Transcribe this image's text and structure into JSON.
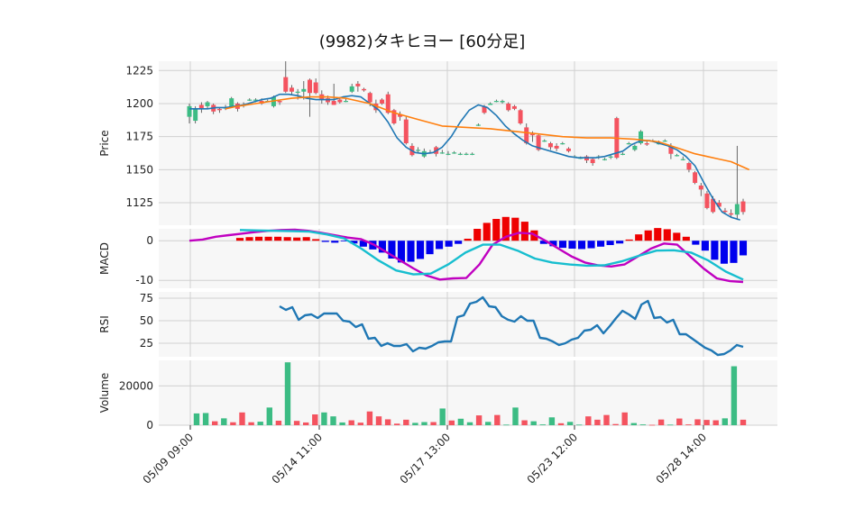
{
  "chart_data": {
    "type": "candlestick",
    "title": "(9982)タキヒヨー [60分足]",
    "x_tick_labels": [
      "05/09 09:00",
      "05/14 11:00",
      "05/17 13:00",
      "05/23 12:00",
      "05/28 14:00"
    ],
    "grid": true,
    "colors": {
      "up": "#3cbc84",
      "down": "#f4535f",
      "ma_short": "#1f77b4",
      "ma_long": "#ff7f0e",
      "macd_line": "#c000c0",
      "signal_line": "#17becf",
      "hist_pos": "#ee0000",
      "hist_neg": "#0000ee",
      "rsi": "#1f77b4",
      "panel_bg": "#f7f7f7"
    },
    "panels": {
      "price": {
        "ylabel": "Price",
        "yticks": [
          1125,
          1150,
          1175,
          1200,
          1225
        ],
        "ylim": [
          1108,
          1232
        ],
        "candles": [
          [
            1190,
            1198,
            1200,
            1185
          ],
          [
            1187,
            1196,
            1198,
            1185
          ],
          [
            1199,
            1196,
            1201,
            1193
          ],
          [
            1198,
            1201,
            1202,
            1196
          ],
          [
            1199,
            1194,
            1200,
            1192
          ],
          [
            1196,
            1195,
            1197,
            1193
          ],
          [
            1197,
            1197,
            1199,
            1195
          ],
          [
            1198,
            1204,
            1205,
            1197
          ],
          [
            1200,
            1196,
            1201,
            1194
          ],
          [
            1199,
            1199,
            1201,
            1197
          ],
          [
            1203,
            1203,
            1204,
            1202
          ],
          [
            1203,
            1203,
            1204,
            1201
          ],
          [
            1202,
            1200,
            1204,
            1199
          ],
          [
            1202,
            1202,
            1203,
            1201
          ],
          [
            1198,
            1205,
            1206,
            1197
          ],
          [
            1202,
            1201,
            1203,
            1199
          ],
          [
            1220,
            1209,
            1232,
            1208
          ],
          [
            1212,
            1209,
            1214,
            1207
          ],
          [
            1209,
            1209,
            1211,
            1203
          ],
          [
            1209,
            1211,
            1217,
            1203
          ],
          [
            1218,
            1208,
            1219,
            1190
          ],
          [
            1216,
            1208,
            1219,
            1207
          ],
          [
            1207,
            1203,
            1210,
            1200
          ],
          [
            1204,
            1201,
            1206,
            1199
          ],
          [
            1202,
            1199,
            1215,
            1199
          ],
          [
            1203,
            1201,
            1205,
            1200
          ],
          [
            1202,
            1202,
            1204,
            1201
          ],
          [
            1209,
            1213,
            1215,
            1208
          ],
          [
            1215,
            1213,
            1217,
            1209
          ],
          [
            1211,
            1210,
            1212,
            1209
          ],
          [
            1208,
            1201,
            1209,
            1198
          ],
          [
            1200,
            1195,
            1203,
            1193
          ],
          [
            1203,
            1200,
            1204,
            1199
          ],
          [
            1207,
            1193,
            1209,
            1192
          ],
          [
            1195,
            1185,
            1196,
            1184
          ],
          [
            1192,
            1190,
            1194,
            1187
          ],
          [
            1188,
            1170,
            1190,
            1169
          ],
          [
            1168,
            1161,
            1170,
            1160
          ],
          [
            1165,
            1165,
            1167,
            1163
          ],
          [
            1160,
            1164,
            1166,
            1159
          ],
          [
            1163,
            1163,
            1165,
            1162
          ],
          [
            1167,
            1162,
            1168,
            1160
          ],
          [
            1163,
            1163,
            1165,
            1162
          ],
          [
            1162,
            1162,
            1164,
            1161
          ],
          [
            1163,
            1163,
            1164,
            1162
          ],
          [
            1162,
            1162,
            1163,
            1161
          ],
          [
            1162,
            1162,
            1163,
            1161
          ],
          [
            1162,
            1162,
            1163,
            1161
          ],
          [
            1184,
            1184,
            1185,
            1183
          ],
          [
            1198,
            1193,
            1199,
            1192
          ],
          [
            1199,
            1200,
            1201,
            1199
          ],
          [
            1202,
            1202,
            1203,
            1201
          ],
          [
            1201,
            1202,
            1203,
            1200
          ],
          [
            1200,
            1195,
            1201,
            1194
          ],
          [
            1198,
            1196,
            1199,
            1195
          ],
          [
            1195,
            1185,
            1196,
            1184
          ],
          [
            1182,
            1170,
            1185,
            1169
          ],
          [
            1177,
            1176,
            1179,
            1171
          ],
          [
            1176,
            1165,
            1177,
            1164
          ],
          [
            1172,
            1172,
            1173,
            1171
          ],
          [
            1170,
            1167,
            1171,
            1165
          ],
          [
            1168,
            1166,
            1170,
            1164
          ],
          [
            1170,
            1170,
            1171,
            1169
          ],
          [
            1166,
            1164,
            1167,
            1163
          ],
          [
            1160,
            1160,
            1161,
            1159
          ],
          [
            1159,
            1159,
            1160,
            1158
          ],
          [
            1160,
            1157,
            1161,
            1155
          ],
          [
            1158,
            1155,
            1159,
            1153
          ],
          [
            1160,
            1160,
            1161,
            1158
          ],
          [
            1158,
            1158,
            1159,
            1157
          ],
          [
            1160,
            1160,
            1161,
            1158
          ],
          [
            1189,
            1159,
            1190,
            1158
          ],
          [
            1162,
            1162,
            1163,
            1161
          ],
          [
            1170,
            1170,
            1171,
            1169
          ],
          [
            1165,
            1168,
            1169,
            1164
          ],
          [
            1170,
            1179,
            1180,
            1169
          ],
          [
            1170,
            1169,
            1172,
            1168
          ],
          [
            1172,
            1172,
            1173,
            1171
          ],
          [
            1170,
            1170,
            1172,
            1169
          ],
          [
            1172,
            1172,
            1173,
            1171
          ],
          [
            1168,
            1162,
            1170,
            1158
          ],
          [
            1161,
            1161,
            1162,
            1160
          ],
          [
            1158,
            1158,
            1160,
            1157
          ],
          [
            1155,
            1150,
            1156,
            1148
          ],
          [
            1148,
            1140,
            1149,
            1139
          ],
          [
            1138,
            1135,
            1140,
            1130
          ],
          [
            1132,
            1121,
            1134,
            1120
          ],
          [
            1128,
            1118,
            1130,
            1117
          ],
          [
            1125,
            1122,
            1127,
            1120
          ],
          [
            1119,
            1118,
            1121,
            1117
          ],
          [
            1117,
            1116,
            1120,
            1114
          ],
          [
            1116,
            1124,
            1168,
            1112
          ],
          [
            1126,
            1118,
            1128,
            1116
          ]
        ],
        "ma_short": [
          1196,
          1196,
          1196,
          1197,
          1197,
          1198,
          1199,
          1201,
          1203,
          1204,
          1207,
          1207,
          1206,
          1204,
          1203,
          1203,
          1203,
          1205,
          1206,
          1205,
          1200,
          1195,
          1186,
          1174,
          1167,
          1163,
          1162,
          1163,
          1167,
          1175,
          1186,
          1195,
          1199,
          1197,
          1191,
          1183,
          1177,
          1172,
          1168,
          1166,
          1164,
          1162,
          1160,
          1159,
          1159,
          1159,
          1160,
          1162,
          1164,
          1169,
          1172,
          1172,
          1170,
          1168,
          1165,
          1160,
          1153,
          1140,
          1128,
          1118,
          1114,
          1112
        ],
        "ma_long": [
          1196,
          1198,
          1200,
          1202,
          1204,
          1205,
          1205,
          1204,
          1200,
          1193,
          1188,
          1183,
          1182,
          1181,
          1179,
          1177,
          1175,
          1174,
          1174,
          1173,
          1172,
          1171,
          1168,
          1165,
          1162,
          1160,
          1158,
          1156,
          1150
        ],
        "ma_short_x": [
          0,
          1,
          2,
          3,
          4,
          5,
          6,
          7,
          8,
          9,
          10,
          11,
          12,
          13,
          14,
          15,
          16,
          17,
          18,
          19,
          20,
          21,
          22,
          23,
          24,
          25,
          26,
          27,
          28,
          29,
          30,
          31,
          32,
          33,
          34,
          35,
          36,
          37,
          38,
          39,
          40,
          41,
          42,
          43,
          44,
          45,
          46,
          47,
          48,
          49,
          50,
          51,
          52,
          53,
          54,
          55,
          56,
          57,
          58,
          59,
          60,
          61
        ],
        "ma_long_x": [
          6,
          8,
          11,
          14,
          17,
          20,
          23,
          26,
          30,
          34,
          38,
          42,
          46,
          50,
          54,
          58,
          62,
          66,
          70,
          74,
          76,
          78,
          80,
          82,
          84,
          86,
          88,
          90,
          93
        ]
      },
      "macd": {
        "ylabel": "MACD",
        "yticks": [
          -10,
          0
        ],
        "ylim": [
          -12,
          3
        ],
        "macd": [
          0,
          0.3,
          1,
          1.4,
          1.8,
          2.2,
          2.5,
          2.7,
          2.8,
          2.5,
          2.0,
          1.4,
          0.8,
          0.4,
          -1,
          -3,
          -5,
          -7,
          -8.8,
          -9.8,
          -9.5,
          -9.4,
          -6,
          -1,
          1,
          2,
          1.8,
          0,
          -2,
          -4,
          -5.5,
          -6.2,
          -6.5,
          -6,
          -4,
          -2,
          -0.7,
          -1,
          -4,
          -7,
          -9.5,
          -10.2,
          -10.4
        ],
        "signal": [
          2.7,
          2.6,
          2.5,
          2.4,
          2.3,
          1.6,
          0.6,
          -2,
          -5,
          -7.5,
          -8.5,
          -8.3,
          -6,
          -3,
          -1,
          -1,
          -2.5,
          -4.5,
          -5.5,
          -6,
          -6.3,
          -6.2,
          -5.2,
          -3.8,
          -2.5,
          -2.4,
          -3,
          -5,
          -7.8,
          -9.8
        ],
        "hist": [
          0.7,
          0.9,
          1.0,
          1.0,
          1.0,
          0.9,
          0.8,
          0.9,
          0.4,
          -0.3,
          -0.5,
          -0.1,
          -0.7,
          -1.5,
          -2.2,
          -3.0,
          -4.5,
          -5.5,
          -5.3,
          -4.6,
          -3.4,
          -2.1,
          -1.5,
          -0.8,
          0.5,
          3.0,
          4.5,
          5.5,
          6.0,
          5.8,
          4.8,
          2.6,
          -0.8,
          -1.4,
          -1.8,
          -2.0,
          -2.1,
          -1.9,
          -1.5,
          -1.1,
          -0.7,
          0.3,
          1.6,
          2.6,
          3.2,
          2.9,
          2.0,
          1.0,
          -1.0,
          -2.5,
          -4.8,
          -5.8,
          -5.6,
          -3.7
        ]
      },
      "rsi": {
        "ylabel": "RSI",
        "yticks": [
          25,
          50,
          75
        ],
        "ylim": [
          10,
          82
        ],
        "values": [
          66,
          62,
          65,
          51,
          56,
          57,
          53,
          58,
          58,
          58,
          50,
          49,
          43,
          46,
          30,
          31,
          22,
          25,
          22,
          22,
          24,
          16,
          20,
          19,
          22,
          26,
          27,
          27,
          54,
          56,
          69,
          71,
          76,
          66,
          65,
          55,
          51,
          49,
          55,
          50,
          50,
          31,
          30,
          27,
          23,
          25,
          29,
          31,
          39,
          40,
          45,
          36,
          44,
          53,
          61,
          57,
          52,
          68,
          72,
          53,
          54,
          48,
          51,
          35,
          35,
          30,
          25,
          20,
          17,
          12,
          13,
          17,
          23,
          21
        ]
      },
      "volume": {
        "ylabel": "Volume",
        "yticks": [
          0,
          20000
        ],
        "ylim": [
          0,
          33000
        ],
        "values": [
          [
            6000,
            "up"
          ],
          [
            6200,
            "up"
          ],
          [
            2000,
            "down"
          ],
          [
            3500,
            "up"
          ],
          [
            1500,
            "down"
          ],
          [
            6500,
            "down"
          ],
          [
            1500,
            "down"
          ],
          [
            1800,
            "up"
          ],
          [
            9000,
            "up"
          ],
          [
            2300,
            "down"
          ],
          [
            32000,
            "up"
          ],
          [
            2200,
            "down"
          ],
          [
            1400,
            "down"
          ],
          [
            5500,
            "down"
          ],
          [
            6500,
            "up"
          ],
          [
            4500,
            "up"
          ],
          [
            1400,
            "up"
          ],
          [
            2500,
            "down"
          ],
          [
            1300,
            "down"
          ],
          [
            7000,
            "down"
          ],
          [
            4500,
            "down"
          ],
          [
            3000,
            "down"
          ],
          [
            800,
            "down"
          ],
          [
            2800,
            "down"
          ],
          [
            1200,
            "up"
          ],
          [
            1600,
            "up"
          ],
          [
            1600,
            "down"
          ],
          [
            8500,
            "up"
          ],
          [
            2400,
            "down"
          ],
          [
            3300,
            "up"
          ],
          [
            1500,
            "up"
          ],
          [
            5000,
            "down"
          ],
          [
            1700,
            "up"
          ],
          [
            5200,
            "down"
          ],
          [
            300,
            "up"
          ],
          [
            9000,
            "up"
          ],
          [
            2500,
            "down"
          ],
          [
            2000,
            "up"
          ],
          [
            400,
            "up"
          ],
          [
            4000,
            "up"
          ],
          [
            1000,
            "down"
          ],
          [
            1700,
            "up"
          ],
          [
            300,
            "up"
          ],
          [
            4500,
            "down"
          ],
          [
            2800,
            "down"
          ],
          [
            5200,
            "down"
          ],
          [
            600,
            "down"
          ],
          [
            6500,
            "down"
          ],
          [
            1100,
            "up"
          ],
          [
            400,
            "up"
          ],
          [
            200,
            "down"
          ],
          [
            2900,
            "down"
          ],
          [
            300,
            "up"
          ],
          [
            3400,
            "down"
          ],
          [
            400,
            "down"
          ],
          [
            3000,
            "down"
          ],
          [
            2700,
            "down"
          ],
          [
            2500,
            "down"
          ],
          [
            3500,
            "up"
          ],
          [
            30000,
            "up"
          ],
          [
            2800,
            "down"
          ]
        ]
      }
    }
  }
}
